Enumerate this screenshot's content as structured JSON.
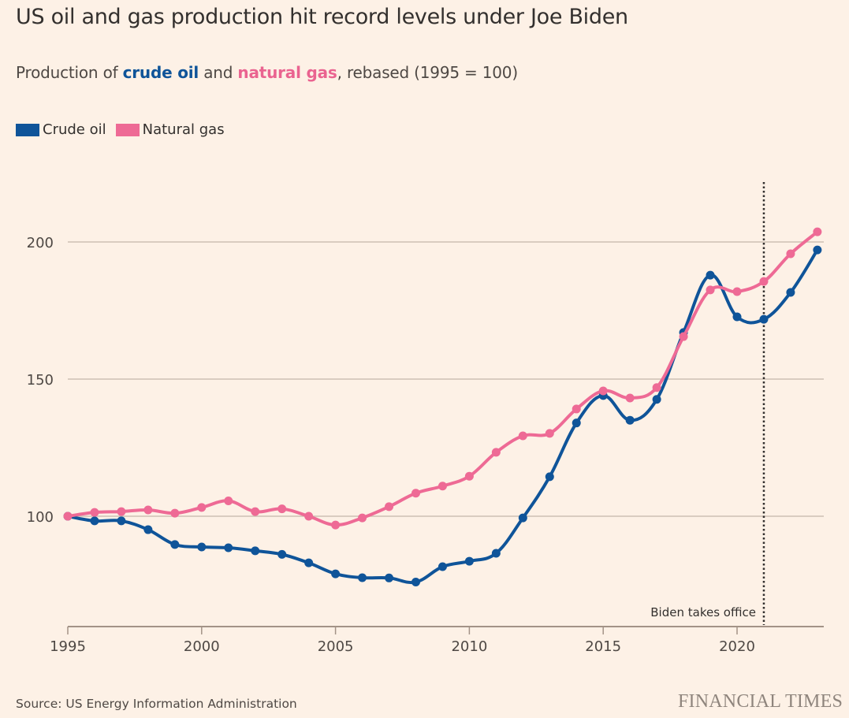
{
  "header": {
    "title": "US oil and gas production hit record levels under Joe Biden",
    "subtitle_prefix": "Production of ",
    "subtitle_oil": "crude oil",
    "subtitle_and": " and ",
    "subtitle_gas": "natural gas",
    "subtitle_suffix": ", rebased (1995 = 100)"
  },
  "legend": [
    {
      "label": "Crude oil",
      "color": "#0f5499"
    },
    {
      "label": "Natural gas",
      "color": "#ee6a95"
    }
  ],
  "footer": {
    "source": "Source: US Energy Information Administration",
    "brand": "FINANCIAL TIMES"
  },
  "chart_data": {
    "type": "line",
    "title": "US oil and gas production hit record levels under Joe Biden",
    "subtitle": "Production of crude oil and natural gas, rebased (1995 = 100)",
    "xlabel": "",
    "ylabel": "",
    "x": [
      1995,
      1996,
      1997,
      1998,
      1999,
      2000,
      2001,
      2002,
      2003,
      2004,
      2005,
      2006,
      2007,
      2008,
      2009,
      2010,
      2011,
      2012,
      2013,
      2014,
      2015,
      2016,
      2017,
      2018,
      2019,
      2020,
      2021,
      2022,
      2023
    ],
    "series": [
      {
        "name": "Crude oil",
        "color": "#0f5499",
        "values": [
          100,
          98.3,
          98.3,
          95.1,
          89.7,
          88.8,
          88.5,
          87.4,
          86.1,
          83,
          79,
          77.6,
          77.5,
          76,
          81.6,
          83.6,
          86.5,
          99.4,
          114.4,
          134,
          144,
          135,
          142.6,
          167,
          187.9,
          172.7,
          171.8,
          181.6,
          197.1
        ]
      },
      {
        "name": "Natural gas",
        "color": "#ee6a95",
        "values": [
          100,
          101.4,
          101.7,
          102.3,
          101.1,
          103.2,
          105.6,
          101.7,
          102.7,
          100,
          96.8,
          99.4,
          103.5,
          108.4,
          111,
          114.6,
          123.3,
          129.3,
          130.2,
          139.1,
          145.7,
          143.1,
          146.9,
          165.5,
          182.5,
          181.9,
          185.6,
          195.7,
          203.7
        ]
      }
    ],
    "xticks": [
      1995,
      2000,
      2005,
      2010,
      2015,
      2020
    ],
    "yticks": [
      100,
      150,
      200
    ],
    "xlim": [
      1995,
      2023.3
    ],
    "ylim": [
      63.5,
      217
    ],
    "grid": "horizontal",
    "legend_position": "top-left",
    "annotations": [
      {
        "type": "vertical-dotted-line",
        "x": 2021,
        "label": "Biden takes office"
      }
    ]
  }
}
